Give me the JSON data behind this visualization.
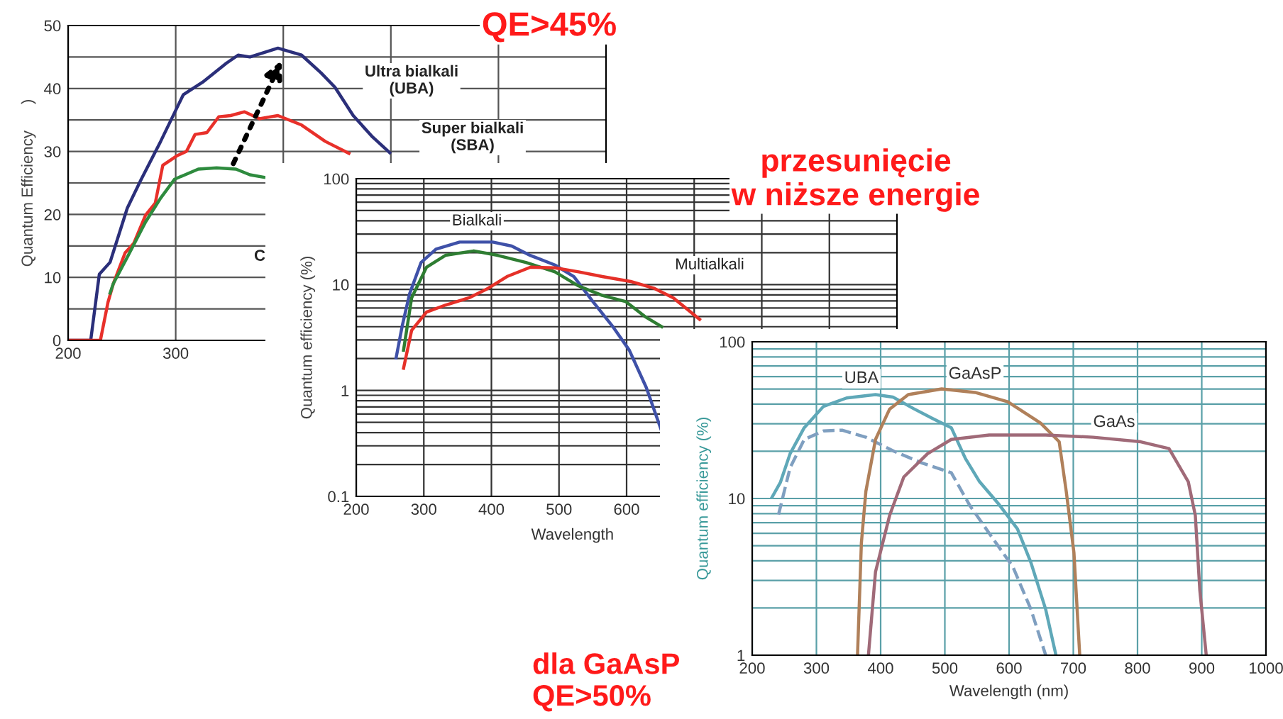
{
  "chart_data": [
    {
      "type": "line",
      "ylabel": "Quantum Efficiency      )",
      "xlim": [
        200,
        700
      ],
      "ylim": [
        0,
        50
      ],
      "xticks": [
        200,
        300,
        {
          "value": 400,
          "label": null
        },
        {
          "value": 500,
          "label": null
        },
        {
          "value": 600,
          "label": null
        }
      ],
      "yticks": [
        0,
        {
          "value": 5,
          "label": null
        },
        10,
        {
          "value": 15,
          "label": null
        },
        20,
        {
          "value": 25,
          "label": null
        },
        30,
        {
          "value": 35,
          "label": null
        },
        40,
        {
          "value": 45,
          "label": null
        },
        50
      ],
      "grid": true,
      "series": [
        {
          "color": "#2b2f7a",
          "x": [
            200,
            221,
            229,
            239,
            255,
            268,
            286,
            307,
            325,
            347,
            358,
            369,
            395,
            417,
            435,
            448,
            465,
            483,
            499
          ],
          "values": [
            0,
            0,
            10.5,
            12.4,
            21,
            25.6,
            31.6,
            39,
            41,
            44,
            45.3,
            45,
            46.4,
            45.3,
            42.5,
            40.2,
            35.7,
            32.3,
            29.8
          ]
        },
        {
          "color": "#e8302a",
          "x": [
            200,
            230,
            237,
            242,
            253,
            261,
            272,
            281,
            288,
            301,
            310,
            318,
            329,
            340,
            351,
            364,
            378,
            395,
            417,
            439,
            461
          ],
          "values": [
            0,
            0,
            6,
            9,
            13.9,
            15.4,
            19.9,
            21.8,
            27.8,
            29.3,
            30,
            32.7,
            33,
            35.5,
            35.7,
            36.3,
            35.2,
            35.7,
            34.2,
            31.6,
            29.7
          ]
        },
        {
          "color": "#2e8b3e",
          "x": [
            239,
            242,
            255,
            272,
            286,
            299,
            321,
            338,
            356,
            369,
            382
          ],
          "values": [
            7.5,
            9,
            13.2,
            18.8,
            22.6,
            25.6,
            27.2,
            27.4,
            27.2,
            26.3,
            25.9
          ]
        }
      ],
      "annotations": [
        "Ultra bialkali\n(UBA)",
        "Super bialkali\n(SBA)",
        "C",
        "QE>45%"
      ]
    },
    {
      "type": "line",
      "ylabel": "Quantum efficiency (%)",
      "xlabel": "Wavelength",
      "log": true,
      "xlim": [
        200,
        1000
      ],
      "ylim": [
        0.1,
        100
      ],
      "xticks": [
        200,
        300,
        400,
        500,
        600,
        {
          "value": 700,
          "label": null
        },
        {
          "value": 800,
          "label": null
        },
        {
          "value": 900,
          "label": null
        }
      ],
      "yticks": [
        0.1,
        {
          "value": 0.2,
          "label": null
        },
        {
          "value": 0.3,
          "label": null
        },
        {
          "value": 0.4,
          "label": null
        },
        {
          "value": 0.5,
          "label": null
        },
        {
          "value": 0.6,
          "label": null
        },
        {
          "value": 0.7,
          "label": null
        },
        {
          "value": 0.8,
          "label": null
        },
        {
          "value": 0.9,
          "label": null
        },
        1,
        {
          "value": 2,
          "label": null
        },
        {
          "value": 3,
          "label": null
        },
        {
          "value": 4,
          "label": null
        },
        {
          "value": 5,
          "label": null
        },
        {
          "value": 6,
          "label": null
        },
        {
          "value": 7,
          "label": null
        },
        {
          "value": 8,
          "label": null
        },
        {
          "value": 9,
          "label": null
        },
        10,
        {
          "value": 20,
          "label": null
        },
        {
          "value": 30,
          "label": null
        },
        {
          "value": 40,
          "label": null
        },
        {
          "value": 50,
          "label": null
        },
        {
          "value": 60,
          "label": null
        },
        {
          "value": 70,
          "label": null
        },
        {
          "value": 80,
          "label": null
        },
        {
          "value": 90,
          "label": null
        },
        100
      ],
      "grid": true,
      "series": [
        {
          "color": "#3f51a8",
          "x": [
            259,
            268,
            279,
            296,
            318,
            353,
            402,
            430,
            458,
            494,
            522,
            551,
            579,
            604,
            629,
            652
          ],
          "values": [
            2.03,
            4.06,
            8.2,
            16.2,
            21.6,
            25.2,
            25.2,
            23.1,
            18.8,
            15.3,
            11.9,
            6.8,
            4.06,
            2.4,
            1.07,
            0.41
          ]
        },
        {
          "color": "#2e7d32",
          "x": [
            270,
            282,
            304,
            332,
            374,
            409,
            451,
            494,
            529,
            564,
            599,
            627,
            652
          ],
          "values": [
            2.4,
            7.5,
            14.6,
            18.9,
            20.8,
            18.9,
            16.2,
            13.2,
            9.7,
            7.9,
            6.9,
            5,
            4.0
          ]
        },
        {
          "color": "#e53028",
          "x": [
            270,
            282,
            304,
            332,
            367,
            395,
            423,
            458,
            494,
            529,
            564,
            606,
            641,
            669,
            708
          ],
          "values": [
            1.62,
            3.7,
            5.5,
            6.4,
            7.5,
            9.2,
            11.9,
            14.6,
            14.4,
            13.2,
            11.9,
            10.7,
            9.2,
            7.5,
            4.7
          ]
        }
      ],
      "annotations": [
        "Bialkali",
        "Multialkali",
        "przesunięcie\nw niższe energie"
      ]
    },
    {
      "type": "line",
      "ylabel": "Quantum efficiency (%)",
      "xlabel": "Wavelength (nm)",
      "log": true,
      "xlim": [
        200,
        1000
      ],
      "ylim": [
        1,
        100
      ],
      "xticks": [
        200,
        300,
        400,
        500,
        600,
        700,
        800,
        900,
        1000
      ],
      "yticks": [
        1,
        {
          "value": 2,
          "label": null
        },
        {
          "value": 3,
          "label": null
        },
        {
          "value": 4,
          "label": null
        },
        {
          "value": 5,
          "label": null
        },
        {
          "value": 6,
          "label": null
        },
        {
          "value": 7,
          "label": null
        },
        {
          "value": 8,
          "label": null
        },
        {
          "value": 9,
          "label": null
        },
        10,
        {
          "value": 20,
          "label": null
        },
        {
          "value": 30,
          "label": null
        },
        {
          "value": 40,
          "label": null
        },
        {
          "value": 50,
          "label": null
        },
        {
          "value": 60,
          "label": null
        },
        {
          "value": 70,
          "label": null
        },
        {
          "value": 80,
          "label": null
        },
        {
          "value": 90,
          "label": null
        },
        100
      ],
      "grid": true,
      "series": [
        {
          "color": "#5fa8b8",
          "x": [
            231,
            244,
            259,
            281,
            311,
            347,
            392,
            419,
            451,
            481,
            510,
            532,
            554,
            583,
            613,
            634,
            657,
            673
          ],
          "values": [
            10.2,
            12.7,
            19.3,
            28.3,
            38.7,
            43.8,
            46.0,
            44.4,
            37.5,
            32.4,
            28.3,
            18.0,
            12.8,
            9.3,
            6.4,
            3.9,
            1.96,
            1.0
          ]
        },
        {
          "color": "#7f9fc0",
          "line_style": "dashed",
          "x": [
            241,
            259,
            281,
            311,
            340,
            377,
            421,
            465,
            510,
            539,
            569,
            606,
            634,
            657
          ],
          "values": [
            7.9,
            15.7,
            23.8,
            27.0,
            27.3,
            24.6,
            20.0,
            16.8,
            14.6,
            9.0,
            6.0,
            3.66,
            1.96,
            1.0
          ]
        },
        {
          "color": "#b0805a",
          "x": [
            364,
            370,
            377,
            392,
            414,
            443,
            495,
            547,
            598,
            649,
            678,
            689,
            701,
            710
          ],
          "values": [
            1,
            5.2,
            11.1,
            23.8,
            37.2,
            46,
            50,
            47.5,
            41.4,
            30.3,
            23.0,
            11.1,
            4.5,
            1
          ]
        },
        {
          "color": "#a06a78",
          "x": [
            381,
            392,
            414,
            436,
            473,
            510,
            569,
            657,
            731,
            805,
            849,
            879,
            890,
            897,
            907
          ],
          "values": [
            1,
            3.4,
            7.8,
            13.7,
            19.3,
            23.8,
            25.4,
            25.4,
            24.6,
            23.0,
            20.8,
            12.8,
            7.8,
            2.6,
            1
          ]
        }
      ],
      "annotations": [
        "UBA",
        "GaAsP",
        "GaAs",
        "dla GaAsP\nQE>50%"
      ]
    }
  ]
}
